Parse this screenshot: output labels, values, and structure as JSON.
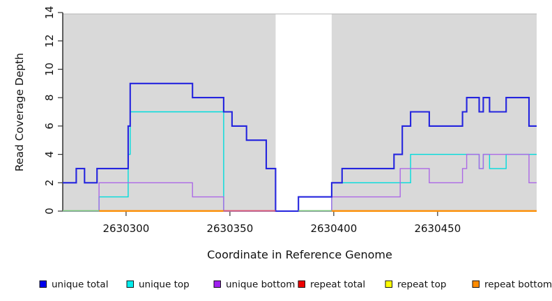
{
  "chart_data": {
    "type": "line",
    "subtype": "step-coverage",
    "title": "",
    "xlabel": "Coordinate in Reference Genome",
    "ylabel": "Read Coverage Depth",
    "xlim": [
      2630269.5,
      2630497.7
    ],
    "ylim": [
      0,
      14
    ],
    "x_ticks": [
      2630300,
      2630350,
      2630400,
      2630450
    ],
    "y_ticks": [
      0,
      2,
      4,
      6,
      8,
      10,
      12,
      14
    ],
    "grid": false,
    "legend_position": "bottom",
    "shaded_color": "#d9d9d9",
    "panel_edge_color": "#b5b5b5",
    "shaded_regions": [
      [
        2630269.5,
        2630372
      ],
      [
        2630399,
        2630497.7
      ]
    ],
    "series": [
      {
        "name": "repeat total",
        "color": "#ee0000",
        "width": 1.4,
        "points": [
          [
            2630269.5,
            0
          ]
        ]
      },
      {
        "name": "repeat top",
        "color": "#ffff00",
        "width": 1.4,
        "points": [
          [
            2630269.5,
            0
          ]
        ]
      },
      {
        "name": "repeat bottom",
        "color": "#ff8c00",
        "width": 1.6,
        "points": [
          [
            2630269.5,
            0
          ]
        ]
      },
      {
        "name": "unique top",
        "color": "#00dcdc",
        "width": 1.4,
        "points": [
          [
            2630269.5,
            0
          ],
          [
            2630287,
            1
          ],
          [
            2630301,
            4
          ],
          [
            2630302,
            7
          ],
          [
            2630347,
            0
          ],
          [
            2630399,
            2
          ],
          [
            2630437,
            4
          ],
          [
            2630470,
            3
          ],
          [
            2630472,
            4
          ],
          [
            2630475,
            3
          ],
          [
            2630483,
            4
          ]
        ]
      },
      {
        "name": "unique bottom",
        "color": "#ac68e6",
        "width": 1.4,
        "points": [
          [
            2630269.5,
            0
          ],
          [
            2630287,
            2
          ],
          [
            2630332,
            1
          ],
          [
            2630347,
            0
          ],
          [
            2630399,
            1
          ],
          [
            2630432,
            3
          ],
          [
            2630446,
            2
          ],
          [
            2630462,
            3
          ],
          [
            2630464,
            4
          ],
          [
            2630470,
            3
          ],
          [
            2630472,
            4
          ],
          [
            2630494,
            2
          ]
        ]
      },
      {
        "name": "unique total",
        "color": "#2424de",
        "width": 2.1,
        "points": [
          [
            2630269.5,
            2
          ],
          [
            2630276,
            3
          ],
          [
            2630280,
            2
          ],
          [
            2630286,
            3
          ],
          [
            2630301,
            6
          ],
          [
            2630302,
            9
          ],
          [
            2630332,
            8
          ],
          [
            2630347,
            7
          ],
          [
            2630351,
            6
          ],
          [
            2630358,
            5
          ],
          [
            2630367.5,
            3
          ],
          [
            2630372,
            0
          ],
          [
            2630383,
            1
          ],
          [
            2630399,
            2
          ],
          [
            2630404,
            3
          ],
          [
            2630429,
            4
          ],
          [
            2630433,
            6
          ],
          [
            2630437,
            7
          ],
          [
            2630446,
            6
          ],
          [
            2630462,
            7
          ],
          [
            2630464,
            8
          ],
          [
            2630470,
            7
          ],
          [
            2630472,
            8
          ],
          [
            2630475,
            7
          ],
          [
            2630483,
            8
          ],
          [
            2630494,
            6
          ]
        ]
      }
    ],
    "zero_overlap_segments": [
      {
        "from": 2630269.5,
        "to": 2630287,
        "color": "#7ec87e",
        "note": "unique-top + repeat-top overlap"
      },
      {
        "from": 2630287,
        "to": 2630347,
        "color": "#ff8c00",
        "note": "repeat bottom"
      },
      {
        "from": 2630347,
        "to": 2630372,
        "color": "#dd5577",
        "note": "multi-series overlap"
      },
      {
        "from": 2630383,
        "to": 2630399,
        "color": "#7ec87e",
        "note": "unique-top + repeat-top overlap"
      },
      {
        "from": 2630399,
        "to": 2630497.7,
        "color": "#ff8c00",
        "note": "repeat bottom"
      }
    ]
  },
  "legend": {
    "items": [
      {
        "label": "unique total",
        "color": "#0000ee"
      },
      {
        "label": "unique top",
        "color": "#00eeee"
      },
      {
        "label": "unique bottom",
        "color": "#a020f0"
      },
      {
        "label": "repeat total",
        "color": "#ee0000"
      },
      {
        "label": "repeat top",
        "color": "#ffff00"
      },
      {
        "label": "repeat bottom",
        "color": "#ff8c00"
      }
    ]
  },
  "axes": {
    "x_title": "Coordinate in Reference Genome",
    "y_title": "Read Coverage Depth",
    "x_tick_labels": [
      "2630300",
      "2630350",
      "2630400",
      "2630450"
    ],
    "y_tick_labels": [
      "0",
      "2",
      "4",
      "6",
      "8",
      "10",
      "12",
      "14"
    ]
  }
}
